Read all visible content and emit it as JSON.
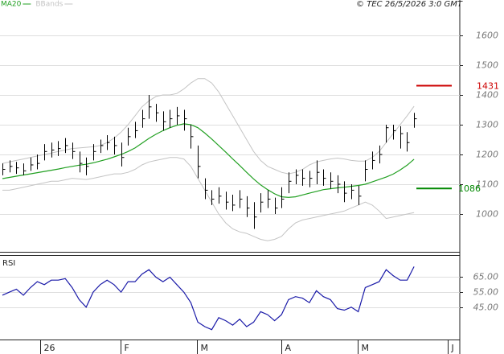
{
  "chart_data": [
    {
      "type": "ohlc",
      "credit": "© TEC 26/5/2026 3:0 GMT",
      "color": "#000000",
      "xlim": [
        -0.35,
        65.55
      ],
      "ylim": [
        873,
        1719
      ],
      "yticks": [
        1000,
        1100,
        1200,
        1300,
        1400,
        1500,
        1600
      ],
      "grid": true,
      "high": [
        1170,
        1180,
        1175,
        1170,
        1190,
        1200,
        1235,
        1240,
        1245,
        1255,
        1240,
        1210,
        1190,
        1235,
        1250,
        1265,
        1260,
        1240,
        1290,
        1310,
        1350,
        1400,
        1370,
        1345,
        1350,
        1360,
        1350,
        1300,
        1230,
        1120,
        1080,
        1090,
        1075,
        1065,
        1080,
        1060,
        1040,
        1070,
        1080,
        1055,
        1090,
        1140,
        1150,
        1150,
        1145,
        1180,
        1150,
        1140,
        1130,
        1110,
        1100,
        1095,
        1180,
        1210,
        1230,
        1300,
        1300,
        1295,
        1275,
        1340
      ],
      "low": [
        1130,
        1140,
        1135,
        1130,
        1145,
        1150,
        1180,
        1190,
        1195,
        1205,
        1185,
        1140,
        1130,
        1180,
        1205,
        1215,
        1200,
        1160,
        1230,
        1255,
        1290,
        1320,
        1310,
        1280,
        1290,
        1300,
        1280,
        1220,
        1120,
        1050,
        1030,
        1035,
        1015,
        1010,
        1020,
        990,
        950,
        1005,
        1020,
        1000,
        1020,
        1070,
        1100,
        1095,
        1090,
        1100,
        1095,
        1085,
        1070,
        1040,
        1050,
        1030,
        1110,
        1150,
        1170,
        1240,
        1250,
        1220,
        1210,
        1290
      ],
      "close": [
        1150,
        1160,
        1155,
        1145,
        1165,
        1170,
        1210,
        1215,
        1220,
        1230,
        1210,
        1170,
        1160,
        1210,
        1230,
        1240,
        1230,
        1190,
        1260,
        1280,
        1320,
        1360,
        1340,
        1310,
        1320,
        1330,
        1320,
        1260,
        1160,
        1080,
        1050,
        1060,
        1040,
        1030,
        1050,
        1020,
        990,
        1040,
        1050,
        1020,
        1050,
        1110,
        1130,
        1120,
        1120,
        1140,
        1120,
        1110,
        1100,
        1070,
        1080,
        1060,
        1150,
        1180,
        1200,
        1290,
        1280,
        1270,
        1240,
        1320
      ],
      "series": [
        {
          "name": "MA20",
          "color": "#22a022",
          "values": [
            1119,
            1123,
            1127,
            1131,
            1135,
            1139,
            1143,
            1147,
            1151,
            1156,
            1160,
            1164,
            1167,
            1172,
            1178,
            1184,
            1192,
            1200,
            1210,
            1222,
            1238,
            1254,
            1268,
            1280,
            1290,
            1298,
            1303,
            1300,
            1290,
            1272,
            1252,
            1230,
            1208,
            1185,
            1163,
            1140,
            1118,
            1098,
            1082,
            1068,
            1058,
            1056,
            1058,
            1064,
            1070,
            1076,
            1082,
            1085,
            1088,
            1090,
            1093,
            1096,
            1100,
            1108,
            1116,
            1124,
            1134,
            1148,
            1164,
            1184
          ]
        },
        {
          "name": "BBands",
          "color": "#c4c4c4",
          "upper": [
            1170,
            1175,
            1180,
            1185,
            1190,
            1195,
            1200,
            1205,
            1210,
            1215,
            1220,
            1222,
            1224,
            1226,
            1230,
            1240,
            1255,
            1275,
            1300,
            1330,
            1360,
            1380,
            1395,
            1400,
            1400,
            1405,
            1420,
            1440,
            1455,
            1455,
            1440,
            1410,
            1370,
            1330,
            1290,
            1250,
            1210,
            1180,
            1160,
            1150,
            1140,
            1135,
            1140,
            1150,
            1165,
            1175,
            1180,
            1185,
            1188,
            1185,
            1180,
            1178,
            1178,
            1190,
            1210,
            1240,
            1270,
            1300,
            1330,
            1362
          ],
          "lower": [
            1080,
            1080,
            1085,
            1090,
            1095,
            1100,
            1105,
            1110,
            1110,
            1115,
            1120,
            1118,
            1116,
            1120,
            1125,
            1130,
            1135,
            1135,
            1140,
            1150,
            1165,
            1175,
            1180,
            1185,
            1190,
            1190,
            1185,
            1160,
            1120,
            1080,
            1040,
            1000,
            970,
            950,
            940,
            935,
            925,
            915,
            910,
            915,
            925,
            950,
            970,
            980,
            985,
            990,
            995,
            1000,
            1005,
            1010,
            1020,
            1030,
            1040,
            1030,
            1010,
            985,
            990,
            995,
            1000,
            1005
          ]
        }
      ],
      "levels": [
        {
          "value": 1431,
          "color": "#cc0000"
        },
        {
          "value": 1086,
          "color": "#008800"
        }
      ]
    },
    {
      "type": "line",
      "title": "RSI",
      "color": "#1a1aa8",
      "xlim": [
        -0.35,
        65.55
      ],
      "ylim": [
        24.5,
        79.2
      ],
      "yticks": [
        {
          "value": 45,
          "label": "45.00"
        },
        {
          "value": 55,
          "label": "55.00"
        },
        {
          "value": 65,
          "label": "65.00"
        }
      ],
      "grid": true,
      "xticks": [
        {
          "value": 5.4,
          "label": "26"
        },
        {
          "value": 16.9,
          "label": "F"
        },
        {
          "value": 27.9,
          "label": "M"
        },
        {
          "value": 40,
          "label": "A"
        },
        {
          "value": 50.9,
          "label": "M"
        },
        {
          "value": 63.8,
          "label": "J"
        }
      ],
      "values": [
        53,
        55,
        57,
        53,
        58,
        62,
        60,
        63,
        63,
        64,
        58,
        50,
        45,
        55,
        60,
        63,
        60,
        55,
        62,
        62,
        67,
        70,
        65,
        62,
        65,
        60,
        55,
        48,
        35,
        32,
        30,
        38,
        36,
        33,
        37,
        32,
        35,
        42,
        40,
        36,
        40,
        50,
        52,
        51,
        48,
        56,
        52,
        50,
        44,
        43,
        45,
        42,
        58,
        60,
        62,
        70,
        66,
        63,
        63,
        72
      ]
    }
  ]
}
